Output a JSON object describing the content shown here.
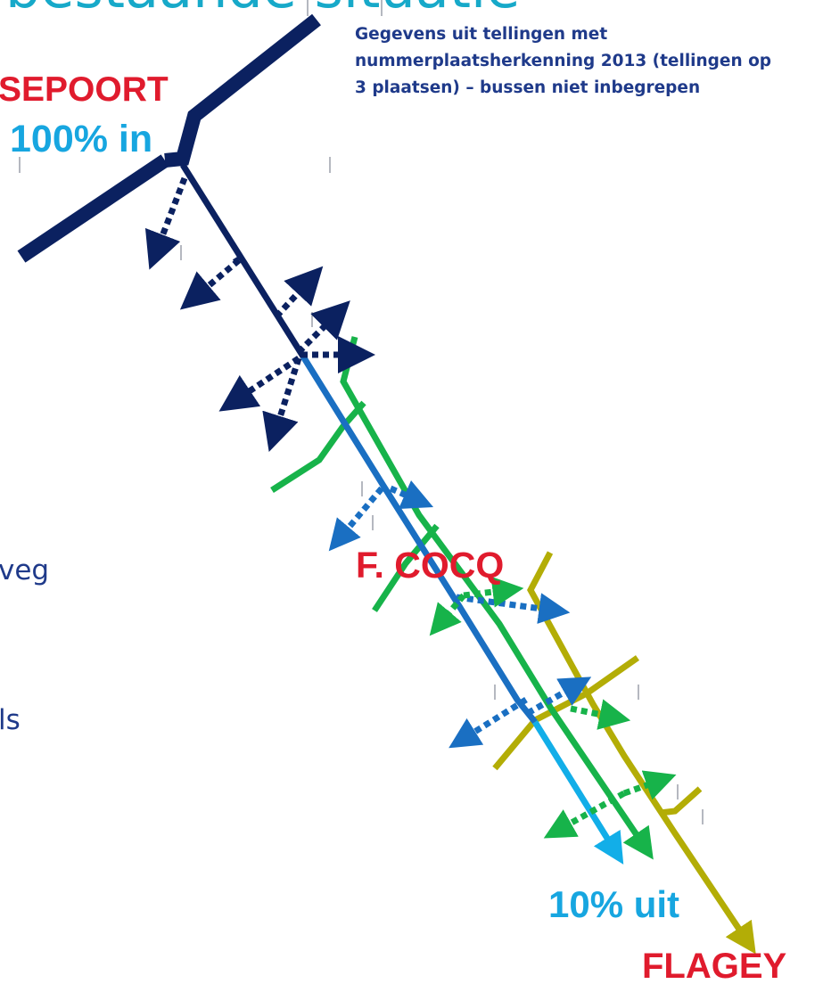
{
  "title_fragment": "bestaande situatie",
  "note": "Gegevens uit tellingen met nummerplaatsherkenning 2013 (tellingen op 3 plaatsen) – bussen niet inbegrepen",
  "labels": {
    "start_place": "SEPOORT",
    "start_share": "100% in",
    "mid_place": "F. COCQ",
    "end_share": "10% uit",
    "end_place": "FLAGEY"
  },
  "left_fragments": [
    "veg",
    "ls"
  ],
  "colors": {
    "navy": "#0b2160",
    "blue": "#1a6fc2",
    "cyan": "#12aee8",
    "green": "#17b34a",
    "olive": "#b3ad06",
    "red": "#e01b2d"
  }
}
